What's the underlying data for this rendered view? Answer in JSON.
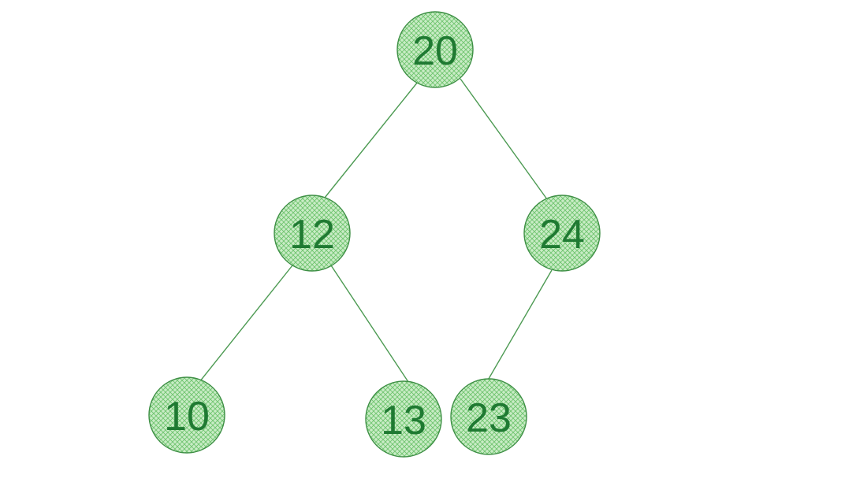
{
  "tree": {
    "colors": {
      "node_fill": "#c9ecc6",
      "hatch": "#6fc46f",
      "node_stroke": "#3e8f45",
      "edge": "#4c9a52",
      "label": "#1f7a32"
    },
    "nodes": [
      {
        "id": "n20",
        "label": "20"
      },
      {
        "id": "n12",
        "label": "12"
      },
      {
        "id": "n24",
        "label": "24"
      },
      {
        "id": "n10",
        "label": "10"
      },
      {
        "id": "n13",
        "label": "13"
      },
      {
        "id": "n23",
        "label": "23"
      }
    ],
    "edges": [
      {
        "from": "n20",
        "to": "n12"
      },
      {
        "from": "n20",
        "to": "n24"
      },
      {
        "from": "n12",
        "to": "n10"
      },
      {
        "from": "n12",
        "to": "n13"
      },
      {
        "from": "n24",
        "to": "n23"
      }
    ]
  }
}
